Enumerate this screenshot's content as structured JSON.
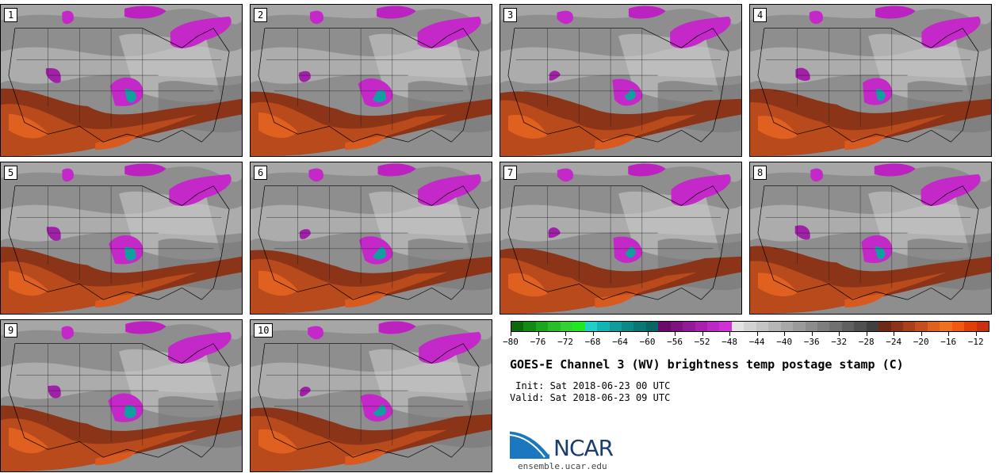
{
  "panels": [
    {
      "label": "1"
    },
    {
      "label": "2"
    },
    {
      "label": "3"
    },
    {
      "label": "4"
    },
    {
      "label": "5"
    },
    {
      "label": "6"
    },
    {
      "label": "7"
    },
    {
      "label": "8"
    },
    {
      "label": "9"
    },
    {
      "label": "10"
    }
  ],
  "colorbar": {
    "ticks": [
      "−80",
      "−76",
      "−72",
      "−68",
      "−64",
      "−60",
      "−56",
      "−52",
      "−48",
      "−44",
      "−40",
      "−36",
      "−32",
      "−28",
      "−24",
      "−20",
      "−16",
      "−12"
    ],
    "tick_values": [
      -80,
      -76,
      -72,
      -68,
      -64,
      -60,
      -56,
      -52,
      -48,
      -44,
      -40,
      -36,
      -32,
      -28,
      -24,
      -20,
      -16,
      -12
    ],
    "min": -80,
    "max": -10,
    "step": 2,
    "colors": [
      "#0a6a0a",
      "#138a13",
      "#1ea51e",
      "#29bd29",
      "#33d233",
      "#22e622",
      "#20d0c8",
      "#14b4b4",
      "#109c9c",
      "#0c8888",
      "#0a7676",
      "#086666",
      "#6a0a6a",
      "#7e1280",
      "#931a96",
      "#a820ac",
      "#bc28c2",
      "#d030d6",
      "#e2e2e2",
      "#d2d2d2",
      "#c4c4c4",
      "#b6b6b6",
      "#a8a8a8",
      "#9a9a9a",
      "#8c8c8c",
      "#7e7e7e",
      "#707070",
      "#606060",
      "#505050",
      "#404040",
      "#6e2a14",
      "#8c3418",
      "#a8401c",
      "#c44e1e",
      "#e06020",
      "#f07020",
      "#f05a10",
      "#e04008",
      "#c83010"
    ]
  },
  "title": "GOES-E Channel 3 (WV) brightness temp postage stamp (C)",
  "init_line": " Init: Sat 2018-06-23 00 UTC",
  "valid_line": "Valid: Sat 2018-06-23 09 UTC",
  "logo_text": "NCAR",
  "site": "ensemble.ucar.edu"
}
